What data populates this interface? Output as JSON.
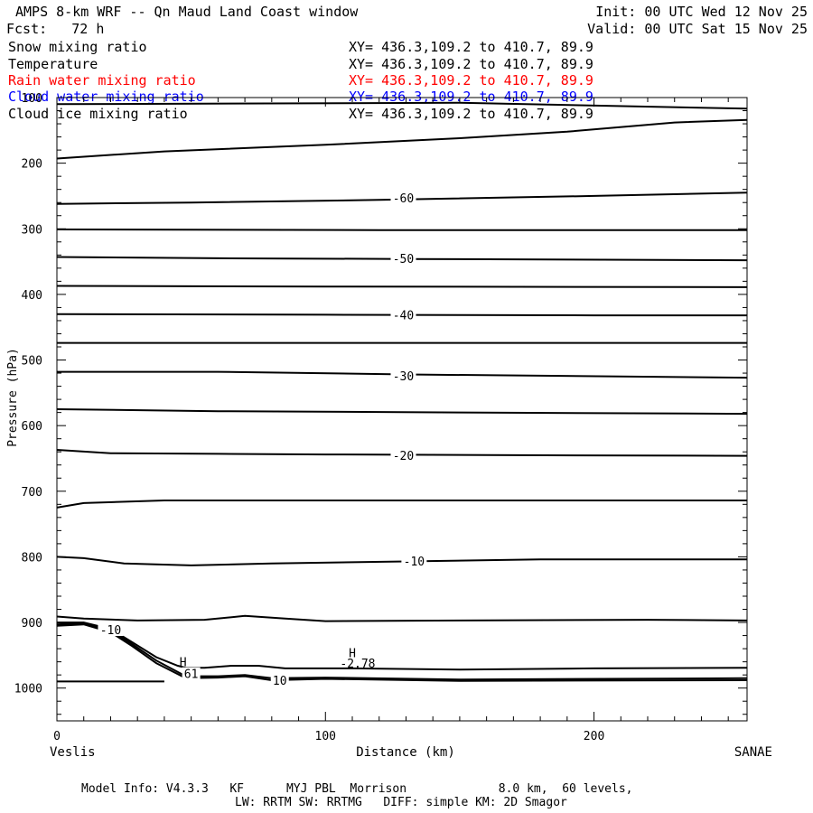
{
  "header": {
    "title": "AMPS 8-km WRF -- Qn Maud Land Coast window",
    "init": "Init: 00 UTC Wed 12 Nov 25",
    "fcst": "Fcst:   72 h",
    "valid": "Valid: 00 UTC Sat 15 Nov 25"
  },
  "fields": [
    {
      "name": "Snow mixing ratio",
      "xy": "XY= 436.3,109.2 to 410.7, 89.9",
      "color": "#000000"
    },
    {
      "name": "Temperature",
      "xy": "XY= 436.3,109.2 to 410.7, 89.9",
      "color": "#000000"
    },
    {
      "name": "Rain water mixing ratio",
      "xy": "XY= 436.3,109.2 to 410.7, 89.9",
      "color": "#ff0000"
    },
    {
      "name": "Cloud water mixing ratio",
      "xy": "XY= 436.3,109.2 to 410.7, 89.9",
      "color": "#0000ff"
    },
    {
      "name": "Cloud ice mixing ratio",
      "xy": "XY= 436.3,109.2 to 410.7, 89.9",
      "color": "#000000"
    }
  ],
  "footer": {
    "line1": "Model Info: V4.3.3   KF      MYJ PBL  Morrison             8.0 km,  60 levels,",
    "line2": "LW: RRTM SW: RRTMG   DIFF: simple KM: 2D Smagor"
  },
  "chart_data": {
    "type": "line",
    "xlabel": "Distance (km)",
    "ylabel": "Pressure (hPa)",
    "x_endpoints": {
      "left": "Veslis",
      "right": "SANAE"
    },
    "xlim": [
      0,
      257
    ],
    "ylim": [
      1050,
      100
    ],
    "x_ticks": [
      0,
      100,
      200
    ],
    "y_ticks": [
      100,
      200,
      300,
      400,
      500,
      600,
      700,
      800,
      900,
      1000
    ],
    "contour_labels": [
      {
        "text": "-60",
        "x": 129,
        "p": 253
      },
      {
        "text": "-50",
        "x": 129,
        "p": 345
      },
      {
        "text": "-40",
        "x": 129,
        "p": 431
      },
      {
        "text": "-30",
        "x": 129,
        "p": 524
      },
      {
        "text": "-20",
        "x": 129,
        "p": 645
      },
      {
        "text": "-10",
        "x": 133,
        "p": 806
      },
      {
        "text": "-10",
        "x": 20,
        "p": 911
      },
      {
        "text": "61",
        "x": 50,
        "p": 978
      },
      {
        "text": "10",
        "x": 83,
        "p": 988
      }
    ],
    "extrema": [
      {
        "text": "H",
        "x": 47,
        "p": 960
      },
      {
        "text": "H",
        "x": 110,
        "p": 946
      },
      {
        "text": "-2.78",
        "x": 112,
        "p": 962
      }
    ],
    "series": [
      {
        "values": [
          [
            0,
            110
          ],
          [
            150,
            108
          ],
          [
            257,
            117
          ]
        ]
      },
      {
        "values": [
          [
            0,
            193
          ],
          [
            40,
            182
          ],
          [
            100,
            172
          ],
          [
            150,
            162
          ],
          [
            190,
            152
          ],
          [
            230,
            138
          ],
          [
            257,
            134
          ]
        ]
      },
      {
        "values": [
          [
            0,
            262
          ],
          [
            50,
            260
          ],
          [
            120,
            256
          ],
          [
            200,
            250
          ],
          [
            257,
            245
          ]
        ]
      },
      {
        "values": [
          [
            0,
            301
          ],
          [
            120,
            302
          ],
          [
            257,
            302
          ]
        ]
      },
      {
        "values": [
          [
            0,
            343
          ],
          [
            60,
            345
          ],
          [
            130,
            346
          ],
          [
            257,
            348
          ]
        ]
      },
      {
        "values": [
          [
            0,
            387
          ],
          [
            100,
            388
          ],
          [
            257,
            389
          ]
        ]
      },
      {
        "values": [
          [
            0,
            430
          ],
          [
            100,
            431
          ],
          [
            200,
            432
          ],
          [
            257,
            432
          ]
        ]
      },
      {
        "values": [
          [
            0,
            474
          ],
          [
            100,
            474
          ],
          [
            257,
            474
          ]
        ]
      },
      {
        "values": [
          [
            0,
            518
          ],
          [
            60,
            518
          ],
          [
            130,
            522
          ],
          [
            257,
            527
          ]
        ]
      },
      {
        "values": [
          [
            0,
            575
          ],
          [
            60,
            578
          ],
          [
            150,
            580
          ],
          [
            257,
            582
          ]
        ]
      },
      {
        "values": [
          [
            0,
            637
          ],
          [
            20,
            642
          ],
          [
            60,
            643
          ],
          [
            100,
            644
          ],
          [
            160,
            645
          ],
          [
            257,
            646
          ]
        ]
      },
      {
        "values": [
          [
            0,
            725
          ],
          [
            10,
            718
          ],
          [
            40,
            714
          ],
          [
            100,
            714
          ],
          [
            200,
            714
          ],
          [
            257,
            714
          ]
        ]
      },
      {
        "values": [
          [
            0,
            800
          ],
          [
            10,
            802
          ],
          [
            25,
            810
          ],
          [
            50,
            813
          ],
          [
            80,
            810
          ],
          [
            130,
            807
          ],
          [
            180,
            804
          ],
          [
            257,
            804
          ]
        ]
      },
      {
        "values": [
          [
            0,
            891
          ],
          [
            10,
            894
          ],
          [
            30,
            897
          ],
          [
            55,
            896
          ],
          [
            70,
            890
          ],
          [
            85,
            894
          ],
          [
            100,
            898
          ],
          [
            150,
            897
          ],
          [
            220,
            896
          ],
          [
            257,
            897
          ]
        ]
      },
      {
        "values": [
          [
            0,
            900
          ],
          [
            10,
            900
          ],
          [
            20,
            910
          ],
          [
            28,
            930
          ],
          [
            37,
            953
          ],
          [
            45,
            966
          ],
          [
            48,
            969
          ],
          [
            55,
            969
          ],
          [
            65,
            966
          ],
          [
            75,
            966
          ],
          [
            85,
            970
          ],
          [
            110,
            970
          ],
          [
            150,
            972
          ],
          [
            200,
            970
          ],
          [
            257,
            969
          ]
        ]
      },
      {
        "values": [
          [
            0,
            903
          ],
          [
            10,
            901
          ],
          [
            20,
            912
          ],
          [
            28,
            933
          ],
          [
            37,
            958
          ],
          [
            48,
            982
          ],
          [
            60,
            982
          ],
          [
            70,
            980
          ],
          [
            80,
            985
          ],
          [
            100,
            984
          ],
          [
            150,
            987
          ],
          [
            257,
            985
          ]
        ]
      },
      {
        "values": [
          [
            0,
            905
          ],
          [
            10,
            903
          ],
          [
            20,
            915
          ],
          [
            28,
            936
          ],
          [
            37,
            962
          ],
          [
            48,
            985
          ],
          [
            60,
            984
          ],
          [
            70,
            982
          ],
          [
            80,
            988
          ],
          [
            100,
            986
          ],
          [
            150,
            989
          ],
          [
            257,
            988
          ]
        ]
      },
      {
        "values": [
          [
            0,
            990
          ],
          [
            40,
            990
          ]
        ]
      }
    ]
  }
}
